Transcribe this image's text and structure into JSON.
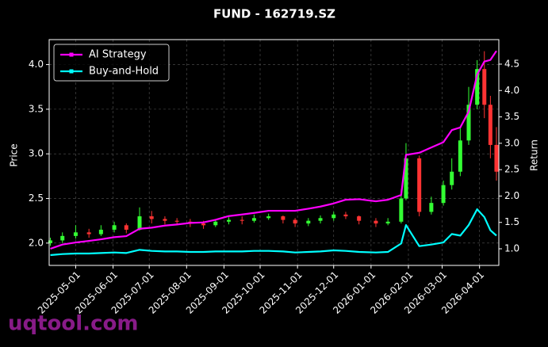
{
  "chart_data": {
    "type": "candlestick",
    "title": "FUND - 162719.SZ",
    "ylabel": "Price",
    "y2label": "Return",
    "watermark": "uqtool.com",
    "up_color": "#33ff33",
    "down_color": "#ff3333",
    "grid": true,
    "legend": "upper left",
    "x": [
      "2025-04-10",
      "2025-04-20",
      "2025-05-01",
      "2025-05-12",
      "2025-05-22",
      "2025-06-02",
      "2025-06-12",
      "2025-06-23",
      "2025-07-03",
      "2025-07-14",
      "2025-07-24",
      "2025-08-04",
      "2025-08-15",
      "2025-08-25",
      "2025-09-05",
      "2025-09-16",
      "2025-09-26",
      "2025-10-08",
      "2025-10-20",
      "2025-10-30",
      "2025-11-10",
      "2025-11-20",
      "2025-12-01",
      "2025-12-11",
      "2025-12-22",
      "2026-01-05",
      "2026-01-15",
      "2026-01-26",
      "2026-01-30",
      "2026-02-10",
      "2026-02-20",
      "2026-03-02",
      "2026-03-09",
      "2026-03-16",
      "2026-03-23",
      "2026-03-30",
      "2026-04-05",
      "2026-04-10",
      "2026-04-15"
    ],
    "open": [
      2.0,
      2.03,
      2.08,
      2.12,
      2.1,
      2.15,
      2.2,
      2.15,
      2.3,
      2.27,
      2.25,
      2.24,
      2.22,
      2.2,
      2.24,
      2.26,
      2.25,
      2.28,
      2.3,
      2.26,
      2.22,
      2.25,
      2.28,
      2.32,
      2.3,
      2.25,
      2.22,
      2.24,
      2.5,
      2.95,
      2.35,
      2.45,
      2.65,
      2.8,
      3.15,
      3.55,
      3.95,
      3.55,
      3.1
    ],
    "high": [
      2.06,
      2.12,
      2.2,
      2.16,
      2.2,
      2.24,
      2.22,
      2.4,
      2.36,
      2.3,
      2.28,
      2.27,
      2.25,
      2.27,
      2.29,
      2.3,
      2.32,
      2.33,
      2.31,
      2.28,
      2.28,
      2.31,
      2.35,
      2.35,
      2.31,
      2.28,
      2.28,
      2.6,
      3.12,
      2.98,
      2.52,
      2.7,
      2.95,
      3.3,
      3.75,
      4.05,
      4.15,
      3.65,
      3.3
    ],
    "low": [
      1.97,
      2.0,
      2.05,
      2.06,
      2.08,
      2.12,
      2.11,
      2.14,
      2.22,
      2.21,
      2.2,
      2.18,
      2.16,
      2.18,
      2.21,
      2.21,
      2.23,
      2.26,
      2.22,
      2.18,
      2.19,
      2.22,
      2.25,
      2.27,
      2.21,
      2.18,
      2.2,
      2.22,
      2.48,
      2.3,
      2.32,
      2.42,
      2.6,
      2.75,
      3.1,
      3.5,
      3.4,
      2.95,
      2.7
    ],
    "close": [
      2.03,
      2.08,
      2.12,
      2.1,
      2.15,
      2.2,
      2.15,
      2.3,
      2.27,
      2.25,
      2.24,
      2.22,
      2.2,
      2.24,
      2.26,
      2.25,
      2.28,
      2.3,
      2.26,
      2.22,
      2.25,
      2.28,
      2.32,
      2.3,
      2.25,
      2.22,
      2.24,
      2.5,
      2.95,
      2.35,
      2.45,
      2.65,
      2.8,
      3.15,
      3.55,
      3.95,
      3.55,
      3.1,
      2.8
    ],
    "series": [
      {
        "name": "AI Strategy",
        "color": "#ff00ff",
        "axis": "y2",
        "values": [
          1.0,
          1.08,
          1.12,
          1.15,
          1.18,
          1.22,
          1.24,
          1.38,
          1.4,
          1.44,
          1.46,
          1.49,
          1.5,
          1.55,
          1.62,
          1.65,
          1.68,
          1.72,
          1.72,
          1.72,
          1.76,
          1.8,
          1.86,
          1.93,
          1.94,
          1.9,
          1.93,
          2.02,
          2.78,
          2.82,
          2.92,
          3.02,
          3.25,
          3.3,
          3.6,
          4.3,
          4.55,
          4.58,
          4.75
        ]
      },
      {
        "name": "Buy-and-Hold",
        "color": "#00ffff",
        "axis": "y2",
        "values": [
          0.88,
          0.9,
          0.91,
          0.91,
          0.92,
          0.93,
          0.92,
          0.98,
          0.96,
          0.95,
          0.95,
          0.94,
          0.94,
          0.95,
          0.95,
          0.95,
          0.96,
          0.96,
          0.95,
          0.93,
          0.94,
          0.95,
          0.97,
          0.96,
          0.94,
          0.93,
          0.94,
          1.1,
          1.45,
          1.05,
          1.08,
          1.12,
          1.28,
          1.25,
          1.45,
          1.75,
          1.6,
          1.35,
          1.25
        ]
      }
    ],
    "xlim": [
      "2025-04-09",
      "2026-04-17"
    ],
    "xticks": [
      "2025-05-01",
      "2025-06-01",
      "2025-07-01",
      "2025-08-01",
      "2025-09-01",
      "2025-10-01",
      "2025-11-01",
      "2025-12-01",
      "2026-01-01",
      "2026-02-01",
      "2026-03-01",
      "2026-04-01"
    ],
    "ylim": [
      1.75,
      4.28
    ],
    "yticks": [
      {
        "value": 2,
        "label": "2.0"
      },
      2.5,
      {
        "value": 3,
        "label": "3.0"
      },
      3.5,
      {
        "value": 4,
        "label": "4.0"
      }
    ],
    "y2lim": [
      0.685,
      4.965
    ],
    "y2ticks": [
      {
        "value": 1,
        "label": "1.0"
      },
      1.5,
      {
        "value": 2,
        "label": "2.0"
      },
      2.5,
      {
        "value": 3,
        "label": "3.0"
      },
      3.5,
      {
        "value": 4,
        "label": "4.0"
      },
      4.5
    ]
  }
}
